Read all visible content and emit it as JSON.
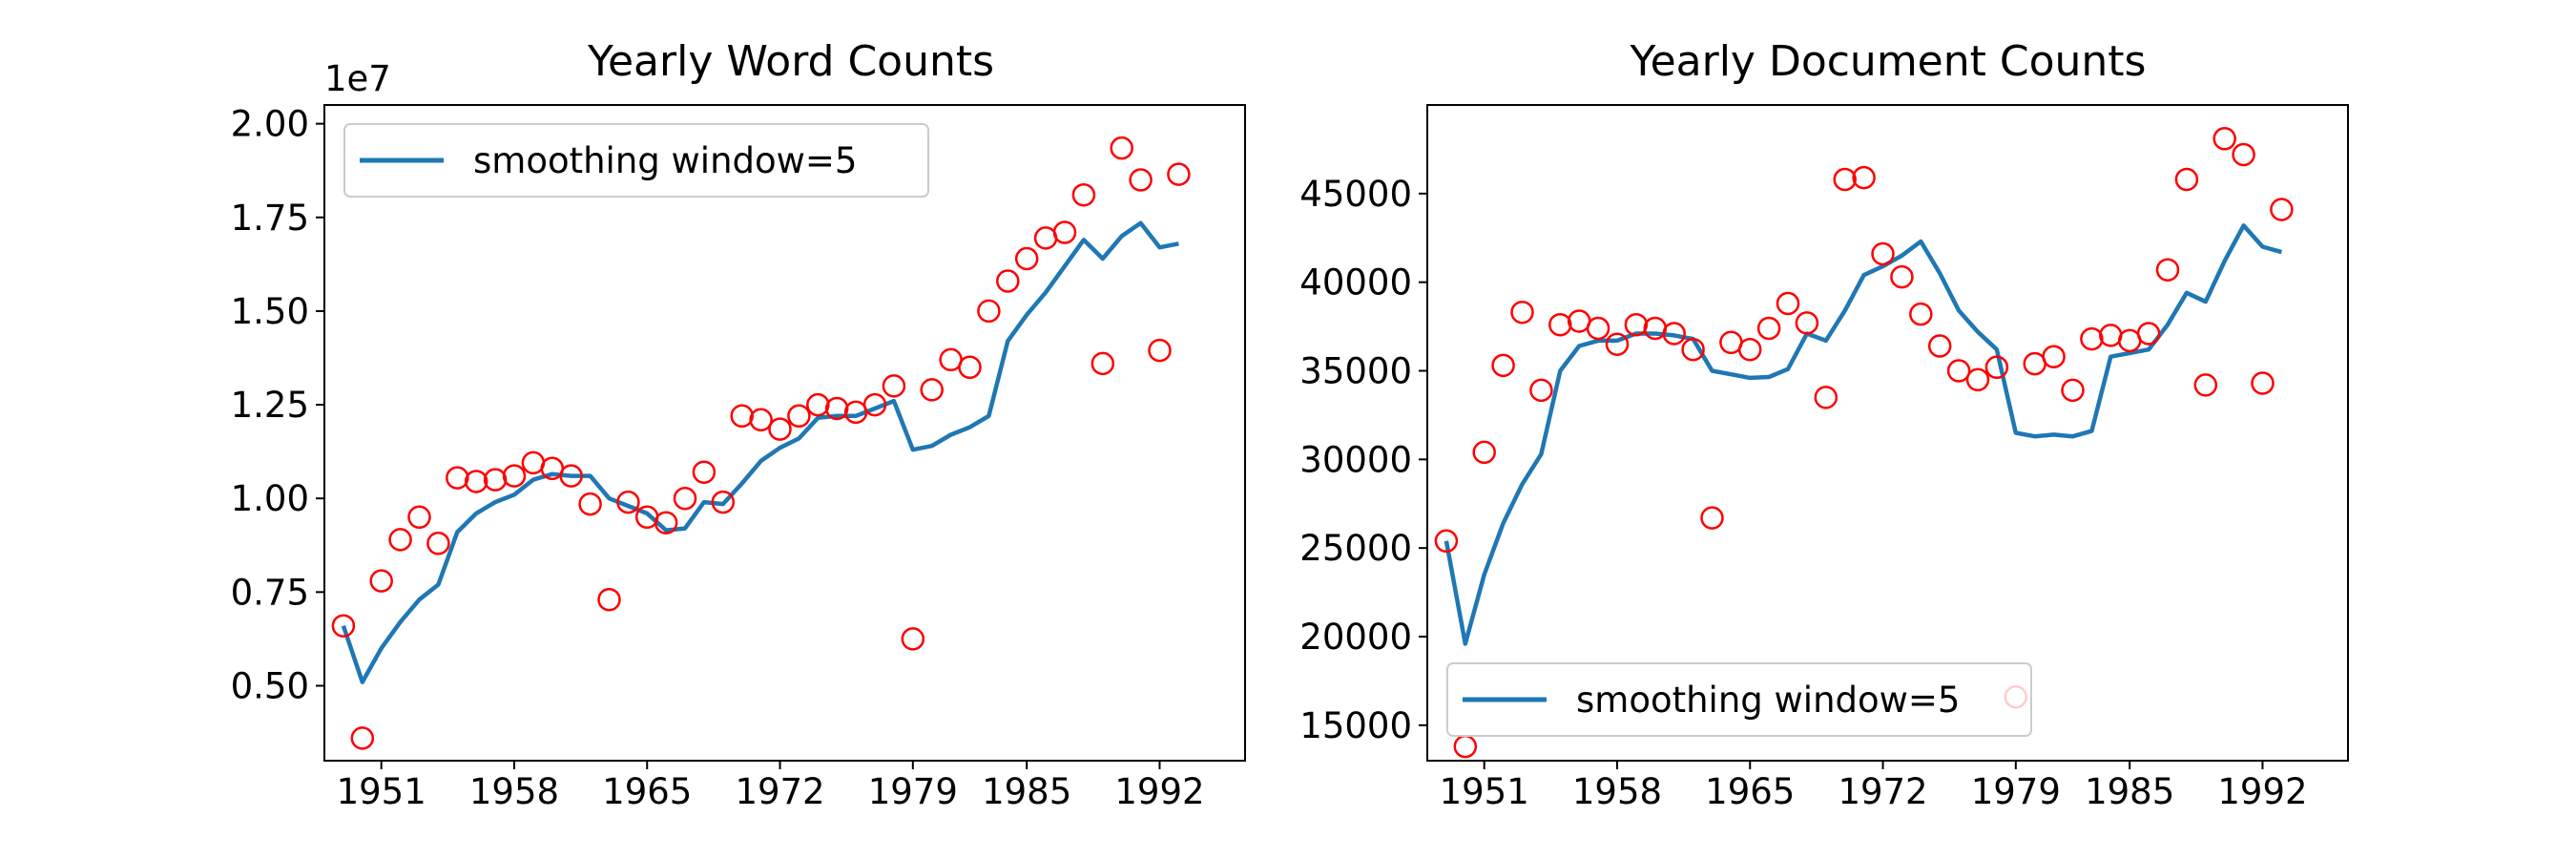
{
  "chart_data": [
    {
      "type": "scatter",
      "title": "Yearly Word Counts",
      "xlabel": "",
      "ylabel": "",
      "y_offset_label": "1e7",
      "xlim": [
        1948.0,
        1996.5
      ],
      "ylim": [
        3000000,
        20500000
      ],
      "x_ticks": [
        1951,
        1958,
        1965,
        1972,
        1979,
        1985,
        1992
      ],
      "x_tick_labels": [
        "1951",
        "1958",
        "1965",
        "1972",
        "1979",
        "1985",
        "1992"
      ],
      "y_ticks": [
        5000000,
        7500000,
        10000000,
        12500000,
        15000000,
        17500000,
        20000000
      ],
      "y_tick_labels": [
        "0.50",
        "0.75",
        "1.00",
        "1.25",
        "1.50",
        "1.75",
        "2.00"
      ],
      "legend": {
        "position": "upper left",
        "label": "smoothing window=5"
      },
      "colors": {
        "points": "#ff0000",
        "line": "#1f77b4"
      },
      "x": [
        1949,
        1950,
        1951,
        1952,
        1953,
        1954,
        1955,
        1956,
        1957,
        1958,
        1959,
        1960,
        1961,
        1962,
        1963,
        1964,
        1965,
        1966,
        1967,
        1968,
        1969,
        1970,
        1971,
        1972,
        1973,
        1974,
        1975,
        1976,
        1977,
        1978,
        1979,
        1980,
        1981,
        1982,
        1983,
        1984,
        1985,
        1986,
        1987,
        1988,
        1989,
        1990,
        1991,
        1992,
        1993
      ],
      "series": [
        {
          "type": "scatter",
          "values": [
            6600000,
            3600000,
            7800000,
            8900000,
            9500000,
            8800000,
            10550000,
            10450000,
            10500000,
            10600000,
            10950000,
            10800000,
            10600000,
            9850000,
            7300000,
            9900000,
            9500000,
            9350000,
            10000000,
            10700000,
            9900000,
            12200000,
            12100000,
            11850000,
            12200000,
            12500000,
            12400000,
            12300000,
            12500000,
            13000000,
            6250000,
            12900000,
            13700000,
            13500000,
            15000000,
            15800000,
            16400000,
            16950000,
            17100000,
            18100000,
            13600000,
            19350000,
            18500000,
            13950000,
            18650000
          ]
        },
        {
          "type": "line",
          "name": "smoothing window=5",
          "values": [
            6600000,
            5100000,
            6000000,
            6700000,
            7300000,
            7700000,
            9100000,
            9600000,
            9900000,
            10100000,
            10500000,
            10650000,
            10600000,
            10600000,
            10000000,
            9800000,
            9600000,
            9150000,
            9200000,
            9900000,
            9850000,
            10400000,
            11000000,
            11350000,
            11600000,
            12150000,
            12200000,
            12200000,
            12400000,
            12600000,
            11300000,
            11400000,
            11700000,
            11900000,
            12200000,
            14200000,
            14900000,
            15500000,
            16200000,
            16900000,
            16400000,
            17000000,
            17350000,
            16700000,
            16800000
          ]
        }
      ]
    },
    {
      "type": "scatter",
      "title": "Yearly Document Counts",
      "xlabel": "",
      "ylabel": "",
      "xlim": [
        1948.0,
        1996.5
      ],
      "ylim": [
        13000,
        50000
      ],
      "x_ticks": [
        1951,
        1958,
        1965,
        1972,
        1979,
        1985,
        1992
      ],
      "x_tick_labels": [
        "1951",
        "1958",
        "1965",
        "1972",
        "1979",
        "1985",
        "1992"
      ],
      "y_ticks": [
        15000,
        20000,
        25000,
        30000,
        35000,
        40000,
        45000
      ],
      "y_tick_labels": [
        "15000",
        "20000",
        "25000",
        "30000",
        "35000",
        "40000",
        "45000"
      ],
      "legend": {
        "position": "lower left",
        "label": "smoothing window=5"
      },
      "colors": {
        "points": "#ff0000",
        "line": "#1f77b4"
      },
      "x": [
        1949,
        1950,
        1951,
        1952,
        1953,
        1954,
        1955,
        1956,
        1957,
        1958,
        1959,
        1960,
        1961,
        1962,
        1963,
        1964,
        1965,
        1966,
        1967,
        1968,
        1969,
        1970,
        1971,
        1972,
        1973,
        1974,
        1975,
        1976,
        1977,
        1978,
        1979,
        1980,
        1981,
        1982,
        1983,
        1984,
        1985,
        1986,
        1987,
        1988,
        1989,
        1990,
        1991,
        1992,
        1993
      ],
      "series": [
        {
          "type": "scatter",
          "values": [
            25400,
            13800,
            30400,
            35300,
            38300,
            33900,
            37600,
            37800,
            37400,
            36500,
            37600,
            37400,
            37100,
            36200,
            26700,
            36600,
            36200,
            37400,
            38800,
            37700,
            33500,
            45800,
            45900,
            41600,
            40300,
            38200,
            36400,
            35000,
            34500,
            35200,
            16600,
            35400,
            35800,
            33900,
            36800,
            37000,
            36700,
            37100,
            40700,
            45800,
            34200,
            48100,
            47200,
            34300,
            44100
          ]
        },
        {
          "type": "line",
          "name": "smoothing window=5",
          "values": [
            25400,
            19600,
            23500,
            26400,
            28600,
            30300,
            35000,
            36400,
            36700,
            36700,
            37100,
            37100,
            37000,
            36800,
            35000,
            34800,
            34600,
            34650,
            35100,
            37100,
            36700,
            38400,
            40400,
            40900,
            41500,
            42300,
            40500,
            38400,
            37200,
            36200,
            31500,
            31300,
            31400,
            31300,
            31600,
            35800,
            36000,
            36200,
            37600,
            39400,
            38900,
            41200,
            43200,
            42000,
            41700
          ]
        }
      ]
    }
  ]
}
